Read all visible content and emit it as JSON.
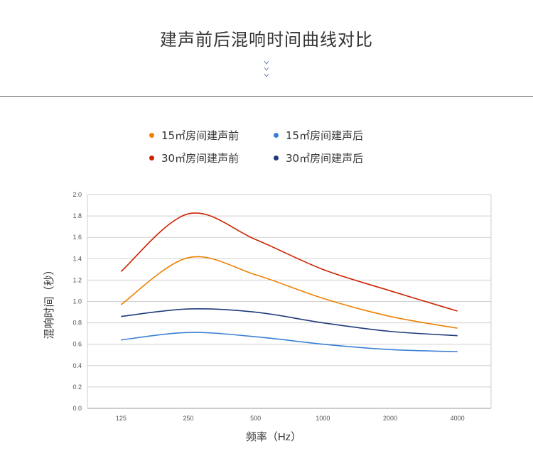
{
  "page": {
    "title": "建声前后混响时间曲线对比",
    "chevron_icon": "chevrons-down-icon"
  },
  "chart_data": {
    "type": "line",
    "categories": [
      "125",
      "250",
      "500",
      "1000",
      "2000",
      "4000"
    ],
    "series": [
      {
        "name": "15㎡房间建声前",
        "color": "#f08000",
        "values": [
          0.97,
          1.41,
          1.25,
          1.03,
          0.86,
          0.75
        ]
      },
      {
        "name": "15㎡房间建声后",
        "color": "#3a7fd5",
        "values": [
          0.64,
          0.71,
          0.67,
          0.6,
          0.55,
          0.53
        ]
      },
      {
        "name": "30㎡房间建声前",
        "color": "#cc2200",
        "values": [
          1.28,
          1.82,
          1.58,
          1.3,
          1.1,
          0.91
        ]
      },
      {
        "name": "30㎡房间建声后",
        "color": "#1f3a7a",
        "values": [
          0.86,
          0.93,
          0.9,
          0.8,
          0.72,
          0.68
        ]
      }
    ],
    "xlabel": "频率（Hz）",
    "ylabel": "混响时间（秒）",
    "ylim": [
      0,
      2.0
    ],
    "yticks": [
      "0.0",
      "0.2",
      "0.4",
      "0.6",
      "0.8",
      "1.0",
      "1.2",
      "1.4",
      "1.6",
      "1.8",
      "2.0"
    ],
    "grid": true,
    "legend_position": "top"
  }
}
